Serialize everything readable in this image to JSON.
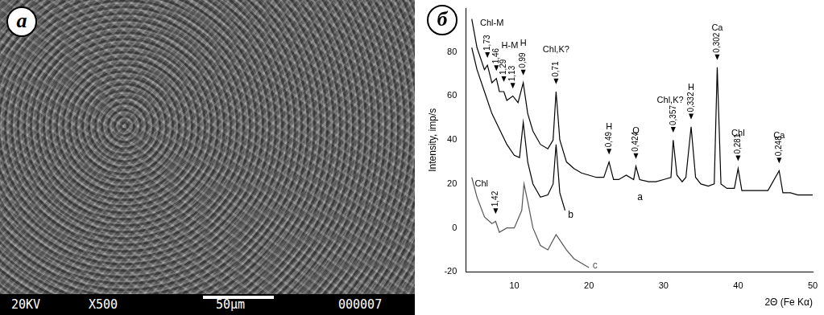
{
  "image_panel": {
    "label": "а",
    "footer": [
      "20KV",
      "X500",
      "50µm",
      "000007"
    ]
  },
  "chart_data": {
    "type": "line",
    "panel_label": "б",
    "x_label": "2Θ (Fe Kα)",
    "y_label": "Intensity, imp/s",
    "xlim": [
      3.5,
      50
    ],
    "xticks": [
      10,
      20,
      30,
      40,
      50
    ],
    "ylim": [
      -20,
      100
    ],
    "yticks": [
      -20,
      0,
      20,
      40,
      60,
      80
    ],
    "grid": false,
    "series": [
      {
        "name": "a",
        "color": "#000000",
        "x": [
          4.3,
          5,
          6,
          6.4,
          7,
          7.6,
          8,
          8.6,
          9,
          9.8,
          10.5,
          11.2,
          11.8,
          12.5,
          13.5,
          14.5,
          15.2,
          15.6,
          16.1,
          17,
          18,
          19,
          20,
          21,
          22,
          22.7,
          23.3,
          24,
          25,
          26,
          26.3,
          26.8,
          28,
          29,
          30,
          31,
          31.3,
          31.8,
          32.5,
          33,
          33.7,
          34.3,
          35,
          36,
          36.8,
          37.2,
          37.7,
          38.5,
          39.5,
          40,
          40.5,
          42,
          44,
          45.5,
          46,
          47,
          48,
          50
        ],
        "values": [
          95,
          82,
          72,
          74,
          66,
          68,
          62,
          62,
          58,
          60,
          57,
          66,
          52,
          44,
          38,
          36,
          40,
          62,
          40,
          30,
          27,
          25,
          24,
          23,
          23,
          30,
          22,
          22,
          24,
          22,
          28,
          22,
          21,
          21,
          22,
          23,
          40,
          24,
          21,
          23,
          46,
          23,
          20,
          19,
          20,
          73,
          20,
          18,
          18,
          27,
          17,
          17,
          17,
          26,
          16,
          16,
          15,
          15
        ]
      },
      {
        "name": "b",
        "color": "#000000",
        "x": [
          4.3,
          5,
          6,
          7,
          8,
          9,
          10,
          10.7,
          11.2,
          11.8,
          12.5,
          13.5,
          14.5,
          15.2,
          15.6,
          16.1,
          16.8
        ],
        "values": [
          82,
          72,
          62,
          52,
          45,
          38,
          33,
          32,
          48,
          30,
          20,
          14,
          15,
          20,
          38,
          16,
          8
        ]
      },
      {
        "name": "c",
        "color": "#555555",
        "x": [
          4.3,
          5,
          6,
          7,
          7.5,
          8,
          9,
          10,
          11,
          11.3,
          11.8,
          12.5,
          13.5,
          14.5,
          15.6,
          16,
          17,
          18,
          19,
          20
        ],
        "values": [
          23,
          14,
          5,
          2,
          3,
          -2,
          0,
          0,
          8,
          20,
          12,
          0,
          -8,
          -10,
          -3,
          -5,
          -10,
          -14,
          -16,
          -18
        ]
      }
    ],
    "curve_labels": [
      {
        "series": "a",
        "x": 26.5,
        "y": 14
      },
      {
        "series": "b",
        "x": 17.2,
        "y": 6
      },
      {
        "series": "c",
        "x": 20.5,
        "y": -17
      }
    ],
    "annotations": [
      {
        "x": 6.4,
        "y": 77,
        "text": "1,73"
      },
      {
        "x": 7.6,
        "y": 71,
        "text": "1,46"
      },
      {
        "x": 8.6,
        "y": 66,
        "text": "1,29"
      },
      {
        "x": 9.8,
        "y": 63,
        "text": "1,13"
      },
      {
        "x": 11.2,
        "y": 69,
        "text": "0,99"
      },
      {
        "x": 15.6,
        "y": 65,
        "text": "0,71"
      },
      {
        "x": 22.7,
        "y": 33,
        "text": "0,49"
      },
      {
        "x": 26.3,
        "y": 31,
        "text": "0,424"
      },
      {
        "x": 31.3,
        "y": 43,
        "text": "0,357"
      },
      {
        "x": 33.7,
        "y": 49,
        "text": "0,332"
      },
      {
        "x": 37.2,
        "y": 76,
        "text": "0,302"
      },
      {
        "x": 40,
        "y": 30,
        "text": "0,281"
      },
      {
        "x": 45.5,
        "y": 29,
        "text": "0,248"
      },
      {
        "x": 7.5,
        "y": 6,
        "text": "1,42"
      }
    ],
    "phase_labels": [
      {
        "x": 7.0,
        "y": 93,
        "text": "Chl-M"
      },
      {
        "x": 9.4,
        "y": 83,
        "text": "H-M"
      },
      {
        "x": 11.2,
        "y": 84,
        "text": "H"
      },
      {
        "x": 15.6,
        "y": 81,
        "text": "Chl,K?"
      },
      {
        "x": 22.7,
        "y": 46,
        "text": "H"
      },
      {
        "x": 26.3,
        "y": 44,
        "text": "Q"
      },
      {
        "x": 30.9,
        "y": 58,
        "text": "Chl,K?"
      },
      {
        "x": 33.7,
        "y": 64,
        "text": "H"
      },
      {
        "x": 37.2,
        "y": 91,
        "text": "Ca"
      },
      {
        "x": 40,
        "y": 43,
        "text": "Chl"
      },
      {
        "x": 45.5,
        "y": 42,
        "text": "Ca"
      },
      {
        "x": 5.6,
        "y": 20,
        "text": "Chl"
      }
    ]
  }
}
